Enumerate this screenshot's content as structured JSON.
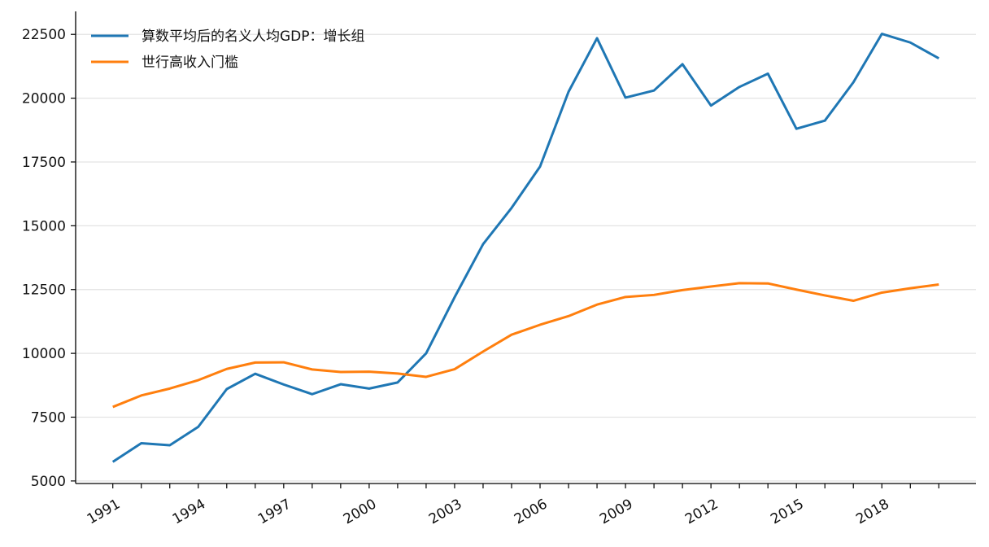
{
  "chart_data": {
    "type": "line",
    "title": "",
    "xlabel": "",
    "ylabel": "",
    "x": [
      1991,
      1992,
      1993,
      1994,
      1995,
      1996,
      1997,
      1998,
      1999,
      2000,
      2001,
      2002,
      2003,
      2004,
      2005,
      2006,
      2007,
      2008,
      2009,
      2010,
      2011,
      2012,
      2013,
      2014,
      2015,
      2016,
      2017,
      2018,
      2019,
      2020
    ],
    "x_tick_labels": [
      "1991",
      "1994",
      "1997",
      "2000",
      "2003",
      "2006",
      "2009",
      "2012",
      "2015",
      "2018"
    ],
    "ylim": [
      4900,
      23400
    ],
    "y_ticks": [
      5000,
      7500,
      10000,
      12500,
      15000,
      17500,
      20000,
      22500
    ],
    "grid": "horizontal",
    "legend_position": "top-left",
    "series": [
      {
        "name": "算数平均后的名义人均GDP：增长组",
        "color": "#1f77b4",
        "values": [
          5750,
          6480,
          6400,
          7120,
          8600,
          9200,
          8780,
          8400,
          8790,
          8620,
          8860,
          10000,
          12200,
          14280,
          15700,
          17320,
          20250,
          22350,
          20020,
          20300,
          21330,
          19710,
          20440,
          20960,
          18800,
          19120,
          20620,
          22520,
          22180,
          21560
        ]
      },
      {
        "name": "世行高收入门槛",
        "color": "#ff7f0e",
        "values": [
          7900,
          8350,
          8620,
          8950,
          9390,
          9640,
          9650,
          9370,
          9270,
          9280,
          9210,
          9080,
          9380,
          10070,
          10730,
          11120,
          11460,
          11910,
          12210,
          12290,
          12480,
          12620,
          12750,
          12740,
          12500,
          12270,
          12060,
          12380,
          12550,
          12700
        ]
      }
    ]
  }
}
